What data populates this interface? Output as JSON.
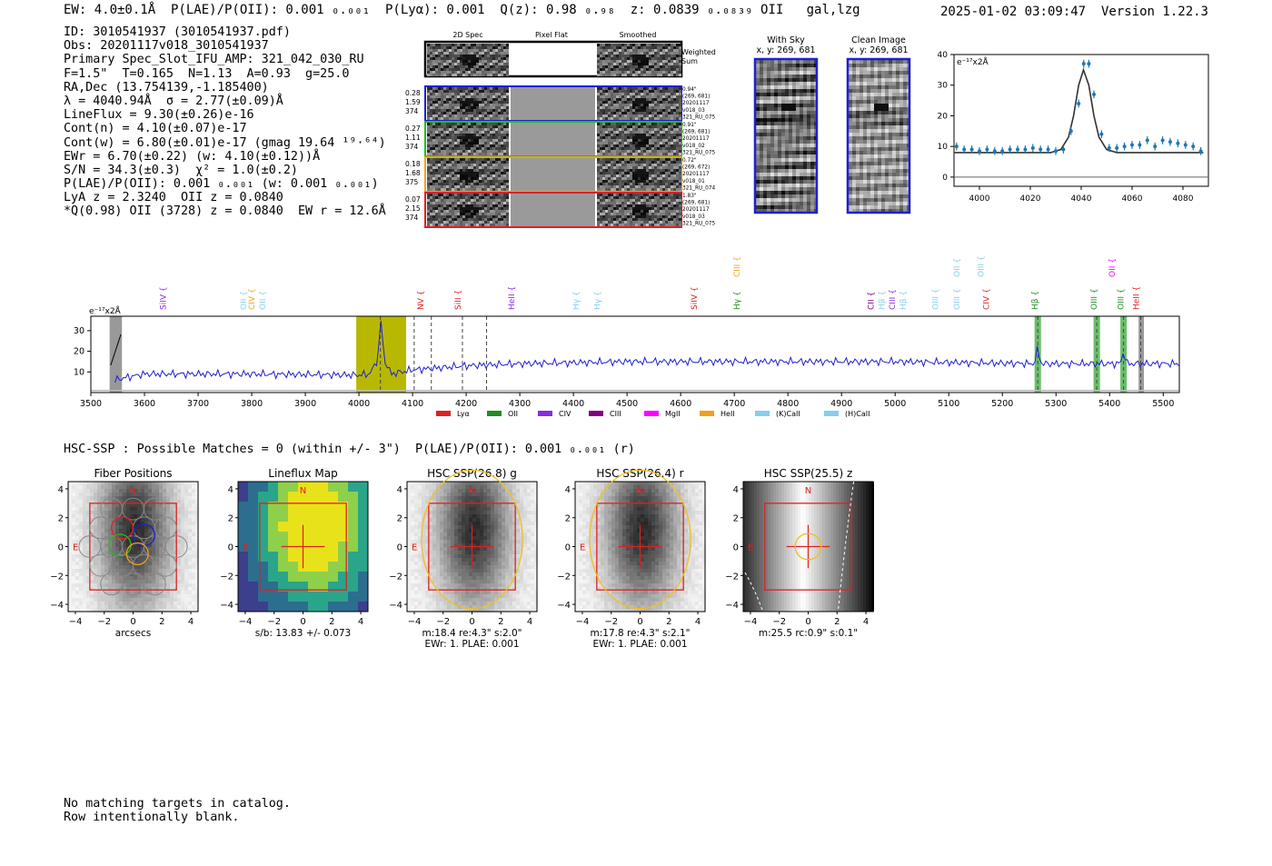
{
  "header": {
    "left": "EW: 4.0±0.1Å  P(LAE)/P(OII): 0.001 ₀.₀₀₁  P(Lyα): 0.001  Q(z): 0.98 ₀.₉₈  z: 0.0839 ₀.₀₈₃₉ OII   gal,lzg",
    "timestamp": "2025-01-02 03:09:47",
    "version": "Version 1.22.3"
  },
  "info_lines": [
    "ID: 3010541937 (3010541937.pdf)",
    "Obs: 20201117v018_3010541937",
    "Primary Spec_Slot_IFU_AMP: 321_042_030_RU",
    "F=1.5\"  T=0.165  N=1.13  A=0.93  g=25.0",
    "RA,Dec (13.754139,-1.185400)",
    "λ = 4040.94Å  σ = 2.77(±0.09)Å",
    "LineFlux = 9.30(±0.26)e-16",
    "Cont(n) = 4.10(±0.07)e-17",
    "Cont(w) = 6.80(±0.01)e-17 (gmag 19.64 ¹⁹·⁶⁴)",
    "EWr = 6.70(±0.22) (w: 4.10(±0.12))Å",
    "S/N = 34.3(±0.3)  χ² = 1.0(±0.2)",
    "P(LAE)/P(OII): 0.001 ₀.₀₀₁ (w: 0.001 ₀.₀₀₁)",
    "LyA z = 2.3240  OII z = 0.0840",
    "*Q(0.98) OII (3728) z = 0.0840  EW r = 12.6Å"
  ],
  "cutouts": {
    "col_titles": [
      "2D Spec",
      "Pixel Flat",
      "Smoothed"
    ],
    "weighted_label": "Weighted Sum",
    "rows": [
      {
        "left": [
          "0.28",
          "1.59",
          "374"
        ],
        "right": [
          "0.94\"",
          "(269, 681)",
          "20201117",
          "v018_03",
          "321_RU_075"
        ],
        "color": "#1f1fd0"
      },
      {
        "left": [
          "0.27",
          "1.11",
          "374"
        ],
        "right": [
          "0.91\"",
          "(269, 681)",
          "20201117",
          "v018_02",
          "321_RU_075"
        ],
        "color": "#22bb22"
      },
      {
        "left": [
          "0.18",
          "1.68",
          "375"
        ],
        "right": [
          "0.72\"",
          "(269, 672)",
          "20201117",
          "v018_01",
          "321_RU_074"
        ],
        "color": "#f0a020"
      },
      {
        "left": [
          "0.07",
          "2.15",
          "374"
        ],
        "right": [
          "1.83\"",
          "(269, 681)",
          "20201117",
          "v018_03",
          "321_RU_075"
        ],
        "color": "#e02020"
      }
    ],
    "with_sky_title": [
      "With Sky",
      "x, y: 269, 681"
    ],
    "clean_title": [
      "Clean Image",
      "x, y: 269, 681"
    ]
  },
  "chart_data": [
    {
      "type": "scatter",
      "name": "zoom-spectrum",
      "ylabel": "e⁻¹⁷x2Å",
      "xlim": [
        3990,
        4090
      ],
      "ylim": [
        -3,
        40
      ],
      "xticks": [
        4000,
        4020,
        4040,
        4060,
        4080
      ],
      "yticks": [
        0,
        10,
        20,
        30,
        40
      ],
      "points_x": [
        3991,
        3994,
        3997,
        4000,
        4003,
        4006,
        4009,
        4012,
        4015,
        4018,
        4021,
        4024,
        4027,
        4030,
        4033,
        4036,
        4039,
        4041,
        4043,
        4045,
        4048,
        4051,
        4054,
        4057,
        4060,
        4063,
        4066,
        4069,
        4072,
        4075,
        4078,
        4081,
        4084,
        4087
      ],
      "points_y": [
        10,
        9,
        9,
        8.5,
        9,
        8.5,
        8.5,
        9,
        9,
        9,
        9.5,
        9,
        9,
        8.5,
        9,
        15,
        24,
        37,
        37,
        27,
        14,
        9.5,
        9.5,
        10,
        10.5,
        10.5,
        12,
        10,
        12,
        11.5,
        11,
        10.5,
        10,
        8.5
      ],
      "fit_x": [
        3990,
        4028,
        4032,
        4035,
        4037,
        4039,
        4040.9,
        4043,
        4045,
        4047,
        4050,
        4054,
        4088
      ],
      "fit_y": [
        8,
        8,
        9,
        13,
        20,
        30,
        35,
        30,
        20,
        13,
        9,
        8,
        8
      ]
    },
    {
      "type": "line",
      "name": "full-spectrum",
      "ylabel": "e⁻¹⁷x2Å",
      "xlim": [
        3500,
        5530
      ],
      "ylim": [
        0,
        37
      ],
      "xticks": [
        3500,
        3600,
        3700,
        3800,
        3900,
        4000,
        4100,
        4200,
        4300,
        4400,
        4500,
        4600,
        4700,
        4800,
        4900,
        5000,
        5100,
        5200,
        5300,
        5400,
        5500
      ],
      "yticks": [
        10,
        20,
        30
      ],
      "baseline_x": [
        3545,
        3560,
        3600,
        3800,
        4000,
        4020,
        4035,
        4041,
        4047,
        4060,
        4100,
        4150,
        4200,
        4300,
        4500,
        4700,
        5000,
        5260,
        5266,
        5272,
        5300,
        5380,
        5420,
        5426,
        5432,
        5460,
        5530
      ],
      "baseline_y": [
        6,
        7,
        9,
        9,
        8.5,
        9,
        16,
        35,
        16,
        9,
        11,
        12,
        13,
        14,
        15,
        15,
        15,
        14,
        22,
        14,
        14,
        14,
        14,
        20,
        14,
        14,
        14
      ],
      "lines": [
        {
          "label": "SiIV",
          "x": 3640,
          "color": "#8a2be2",
          "row": 1
        },
        {
          "label": "OII",
          "x": 3790,
          "color": "#87ceeb",
          "row": 1
        },
        {
          "label": "CIV",
          "x": 3805,
          "color": "#f0a020",
          "row": 1
        },
        {
          "label": "OII",
          "x": 3825,
          "color": "#87ceeb",
          "row": 1
        },
        {
          "label": "NV",
          "x": 4120,
          "color": "#e02020",
          "row": 1
        },
        {
          "label": "SiII",
          "x": 4190,
          "color": "#e02020",
          "row": 1
        },
        {
          "label": "HeII",
          "x": 4290,
          "color": "#8a2be2",
          "row": 1
        },
        {
          "label": "Hγ",
          "x": 4410,
          "color": "#87ceeb",
          "row": 1
        },
        {
          "label": "Hγ",
          "x": 4450,
          "color": "#87ceeb",
          "row": 1
        },
        {
          "label": "SiIV",
          "x": 4630,
          "color": "#e02020",
          "row": 1
        },
        {
          "label": "CIII",
          "x": 4710,
          "color": "#f0a020",
          "row": 0
        },
        {
          "label": "Hγ",
          "x": 4710,
          "color": "#228b22",
          "row": 1
        },
        {
          "label": "CII",
          "x": 4960,
          "color": "#800080",
          "row": 1
        },
        {
          "label": "Hβ",
          "x": 4980,
          "color": "#87ceeb",
          "row": 1
        },
        {
          "label": "CIII",
          "x": 5000,
          "color": "#8a2be2",
          "row": 1
        },
        {
          "label": "Hβ",
          "x": 5020,
          "color": "#87ceeb",
          "row": 1
        },
        {
          "label": "OIII",
          "x": 5080,
          "color": "#87ceeb",
          "row": 1
        },
        {
          "label": "OII",
          "x": 5120,
          "color": "#87ceeb",
          "row": 0
        },
        {
          "label": "OIII",
          "x": 5120,
          "color": "#87ceeb",
          "row": 1
        },
        {
          "label": "OIII",
          "x": 5165,
          "color": "#87ceeb",
          "row": 0
        },
        {
          "label": "CIV",
          "x": 5175,
          "color": "#e02020",
          "row": 1
        },
        {
          "label": "Hβ",
          "x": 5266,
          "color": "#228b22",
          "row": 1
        },
        {
          "label": "OII",
          "x": 5410,
          "color": "#ff00ff",
          "row": 0
        },
        {
          "label": "OIII",
          "x": 5376,
          "color": "#228b22",
          "row": 1
        },
        {
          "label": "OIII",
          "x": 5426,
          "color": "#228b22",
          "row": 1
        },
        {
          "label": "HeII",
          "x": 5455,
          "color": "#e02020",
          "row": 1
        }
      ],
      "legend": [
        {
          "label": "Lyα",
          "color": "#e02020"
        },
        {
          "label": "OII",
          "color": "#228b22"
        },
        {
          "label": "CIV",
          "color": "#8a2be2"
        },
        {
          "label": "CIII",
          "color": "#800080"
        },
        {
          "label": "MgII",
          "color": "#ff00ff"
        },
        {
          "label": "HeII",
          "color": "#f0a020"
        },
        {
          "label": "(K)CaII",
          "color": "#87ceeb"
        },
        {
          "label": "(H)CaII",
          "color": "#87ceeb"
        }
      ],
      "legend_placement": "bottom-center"
    }
  ],
  "hsc": {
    "line": "HSC-SSP : Possible Matches = 0 (within +/- 3\")  P(LAE)/P(OII): 0.001 ₀.₀₀₁ (r)",
    "panels": [
      {
        "title": "Fiber Positions",
        "sub1": "arcsecs",
        "sub2": ""
      },
      {
        "title": "Lineflux Map",
        "sub1": "s/b: 13.83 +/- 0.073",
        "sub2": ""
      },
      {
        "title": "HSC SSP(26.8) g",
        "sub1": "m:18.4  re:4.3\"  s:2.0\"",
        "sub2": "EWr: 1. PLAE: 0.001"
      },
      {
        "title": "HSC SSP(26.4) r",
        "sub1": "m:17.8  re:4.3\"  s:2.1\"",
        "sub2": "EWr: 1. PLAE: 0.001"
      },
      {
        "title": "HSC SSP(25.5) z",
        "sub1": "m:25.5 rc:0.9\"  s:0.1\"",
        "sub2": ""
      }
    ],
    "ticks": [
      "−4",
      "−2",
      "0",
      "2",
      "4"
    ],
    "n_label": "N",
    "e_label": "E"
  },
  "footer": [
    "No matching targets in catalog.",
    "Row intentionally blank."
  ]
}
